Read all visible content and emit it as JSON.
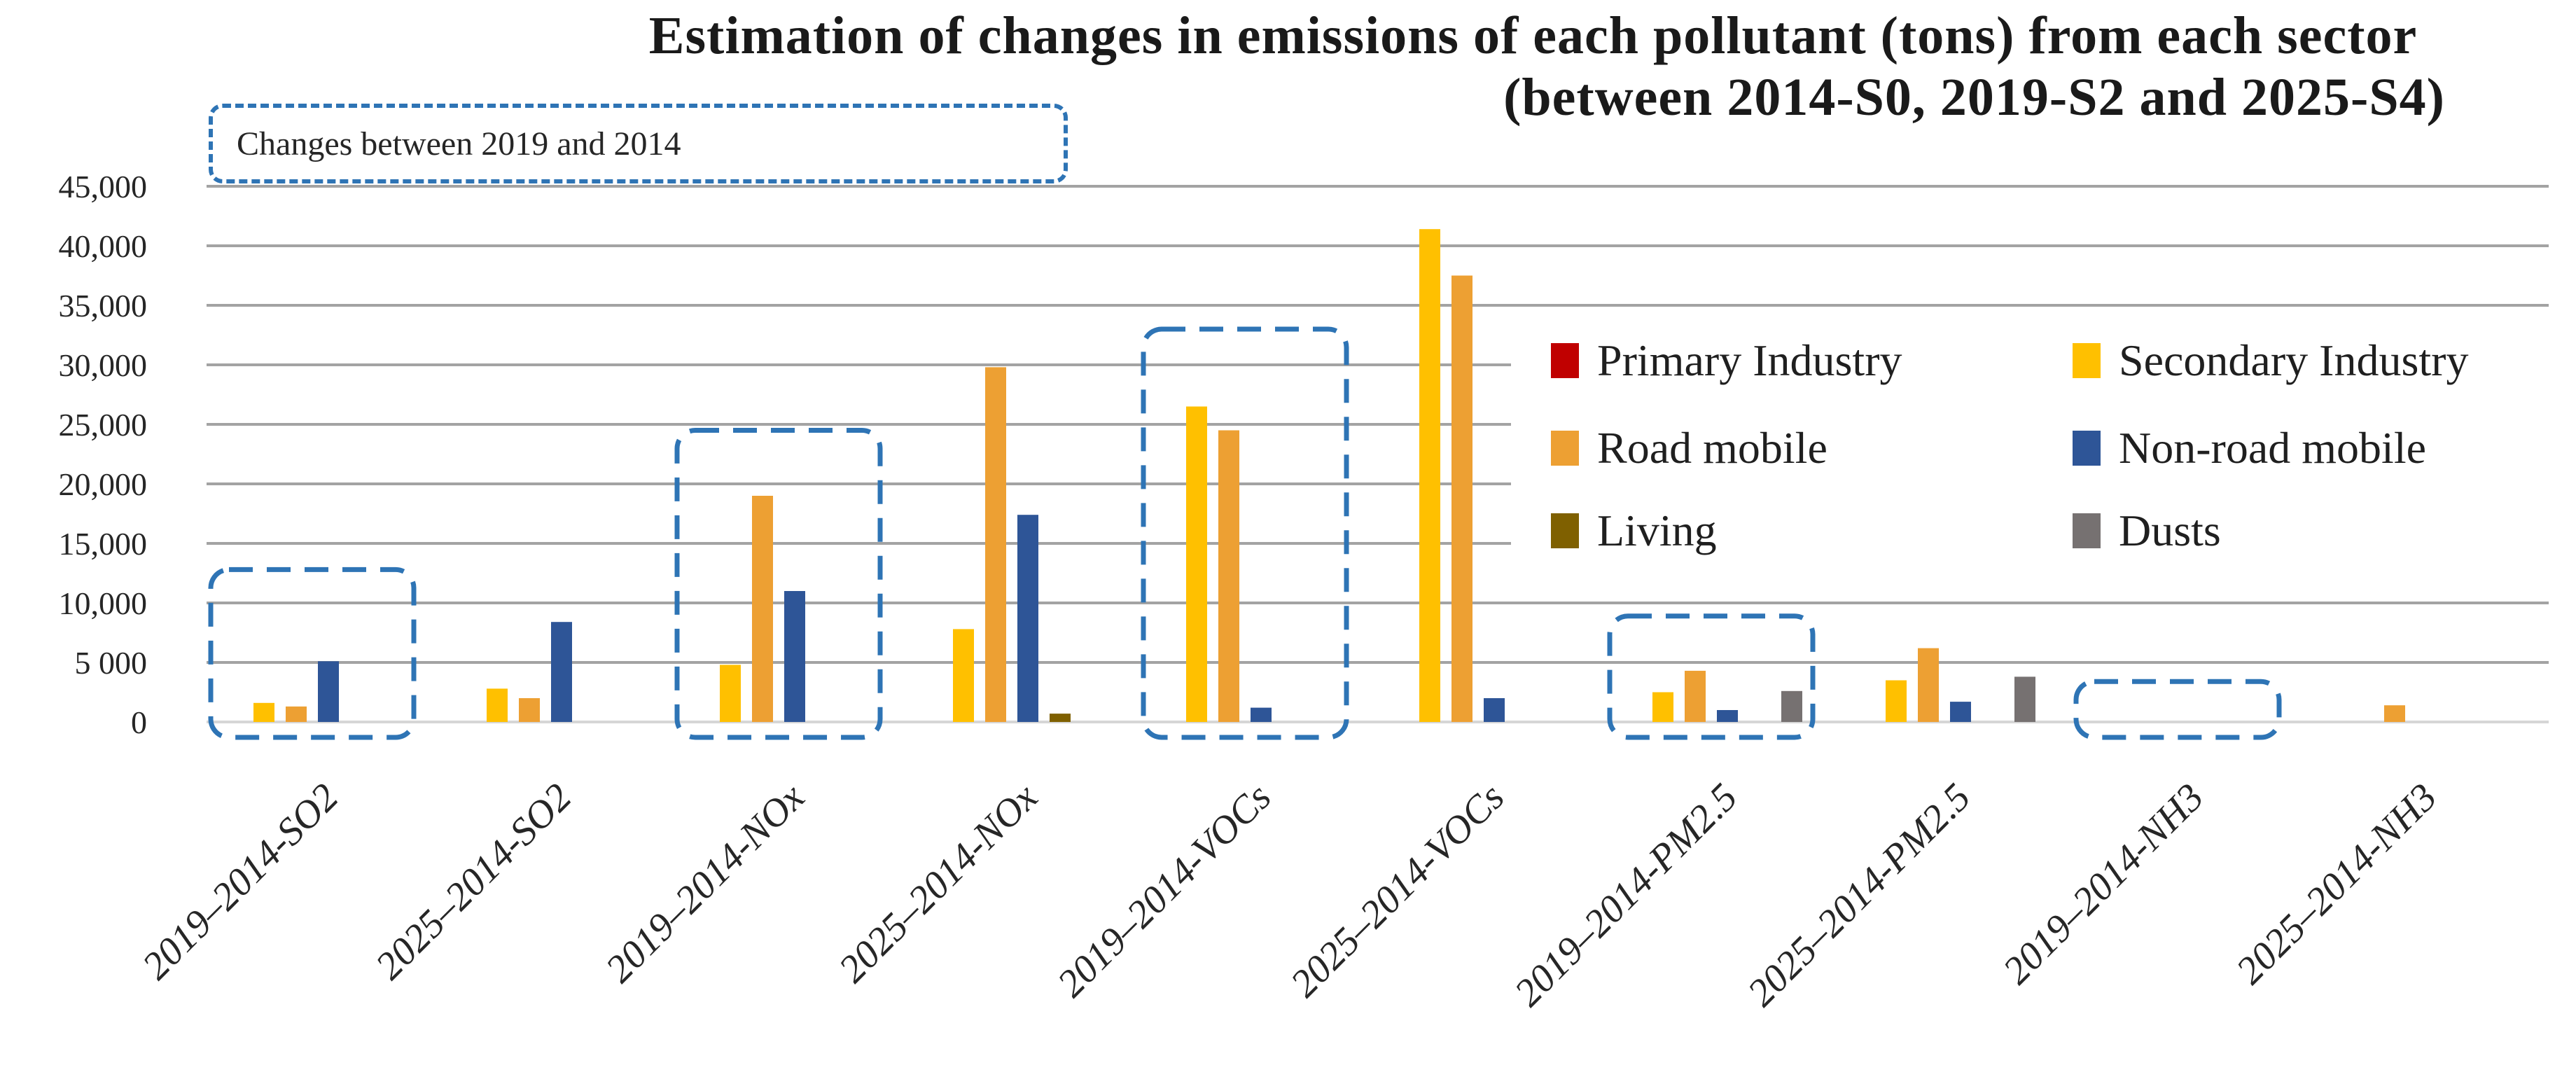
{
  "title": {
    "line1": "Estimation of changes in emissions of each pollutant (tons) from each sector",
    "line2": "(between 2014-S0, 2019-S2 and 2025-S4)"
  },
  "annotation": "Changes between 2019 and 2014",
  "colors": {
    "primary_industry": "#C00000",
    "secondary_industry": "#FFC000",
    "road_mobile": "#EDA033",
    "non_road_mobile": "#2E5597",
    "living": "#7F6000",
    "dusts": "#767171",
    "highlight_box": "#2E74B5",
    "gridline": "#A3A3A3",
    "axis_line": "#D6D6D6",
    "text": "#262626"
  },
  "legend": [
    {
      "label": "Primary Industry",
      "color": "#C00000"
    },
    {
      "label": "Secondary Industry",
      "color": "#FFC000"
    },
    {
      "label": "Road mobile",
      "color": "#EDA033"
    },
    {
      "label": "Non-road mobile",
      "color": "#2E5597"
    },
    {
      "label": "Living",
      "color": "#7F6000"
    },
    {
      "label": "Dusts",
      "color": "#767171"
    }
  ],
  "chart_data": {
    "type": "bar",
    "title": "Estimation of changes in emissions of each pollutant (tons) from each sector (between 2014-S0, 2019-S2 and 2025-S4)",
    "xlabel": "",
    "ylabel": "",
    "ylim": [
      0,
      45000
    ],
    "grid": true,
    "legend_position": "inside-right",
    "categories": [
      "2019–2014-SO2",
      "2025–2014-SO2",
      "2019–2014-NOx",
      "2025–2014-NOx",
      "2019–2014-VOCs",
      "2025–2014-VOCs",
      "2019–2014-PM2.5",
      "2025–2014-PM2.5",
      "2019–2014-NH3",
      "2025–2014-NH3"
    ],
    "series": [
      {
        "name": "Primary Industry",
        "color": "#C00000",
        "values": [
          0,
          0,
          0,
          0,
          0,
          0,
          0,
          0,
          0,
          0
        ]
      },
      {
        "name": "Secondary Industry",
        "color": "#FFC000",
        "values": [
          1600,
          2800,
          4800,
          7800,
          26500,
          41400,
          2500,
          3500,
          0,
          0
        ]
      },
      {
        "name": "Road mobile",
        "color": "#EDA033",
        "values": [
          1300,
          2000,
          19000,
          29800,
          24500,
          37500,
          4300,
          6200,
          0,
          1400
        ]
      },
      {
        "name": "Non-road mobile",
        "color": "#2E5597",
        "values": [
          5100,
          8400,
          11000,
          17400,
          1200,
          2000,
          1000,
          1700,
          0,
          0
        ]
      },
      {
        "name": "Living",
        "color": "#7F6000",
        "values": [
          0,
          0,
          0,
          700,
          0,
          0,
          0,
          0,
          0,
          0
        ]
      },
      {
        "name": "Dusts",
        "color": "#767171",
        "values": [
          0,
          0,
          0,
          0,
          0,
          0,
          2600,
          3800,
          0,
          0
        ]
      }
    ],
    "yticks": [
      {
        "value": 0,
        "label": "0"
      },
      {
        "value": 5000,
        "label": "5 000"
      },
      {
        "value": 10000,
        "label": "10,000"
      },
      {
        "value": 15000,
        "label": "15,000"
      },
      {
        "value": 20000,
        "label": "20,000"
      },
      {
        "value": 25000,
        "label": "25,000"
      },
      {
        "value": 30000,
        "label": "30,000"
      },
      {
        "value": 35000,
        "label": "35,000"
      },
      {
        "value": 40000,
        "label": "40,000"
      },
      {
        "value": 45000,
        "label": "45,000"
      }
    ],
    "highlight_boxes": {
      "label": "Changes between 2019 and 2014",
      "boxes": [
        {
          "category_index": 0,
          "category": "2019–2014-SO2",
          "top": 12800
        },
        {
          "category_index": 2,
          "category": "2019–2014-NOx",
          "top": 24500
        },
        {
          "category_index": 4,
          "category": "2019–2014-VOCs",
          "top": 33000
        },
        {
          "category_index": 6,
          "category": "2019–2014-PM2.5",
          "top": 8900
        },
        {
          "category_index": 8,
          "category": "2019–2014-NH3",
          "top": 3400
        }
      ]
    }
  }
}
